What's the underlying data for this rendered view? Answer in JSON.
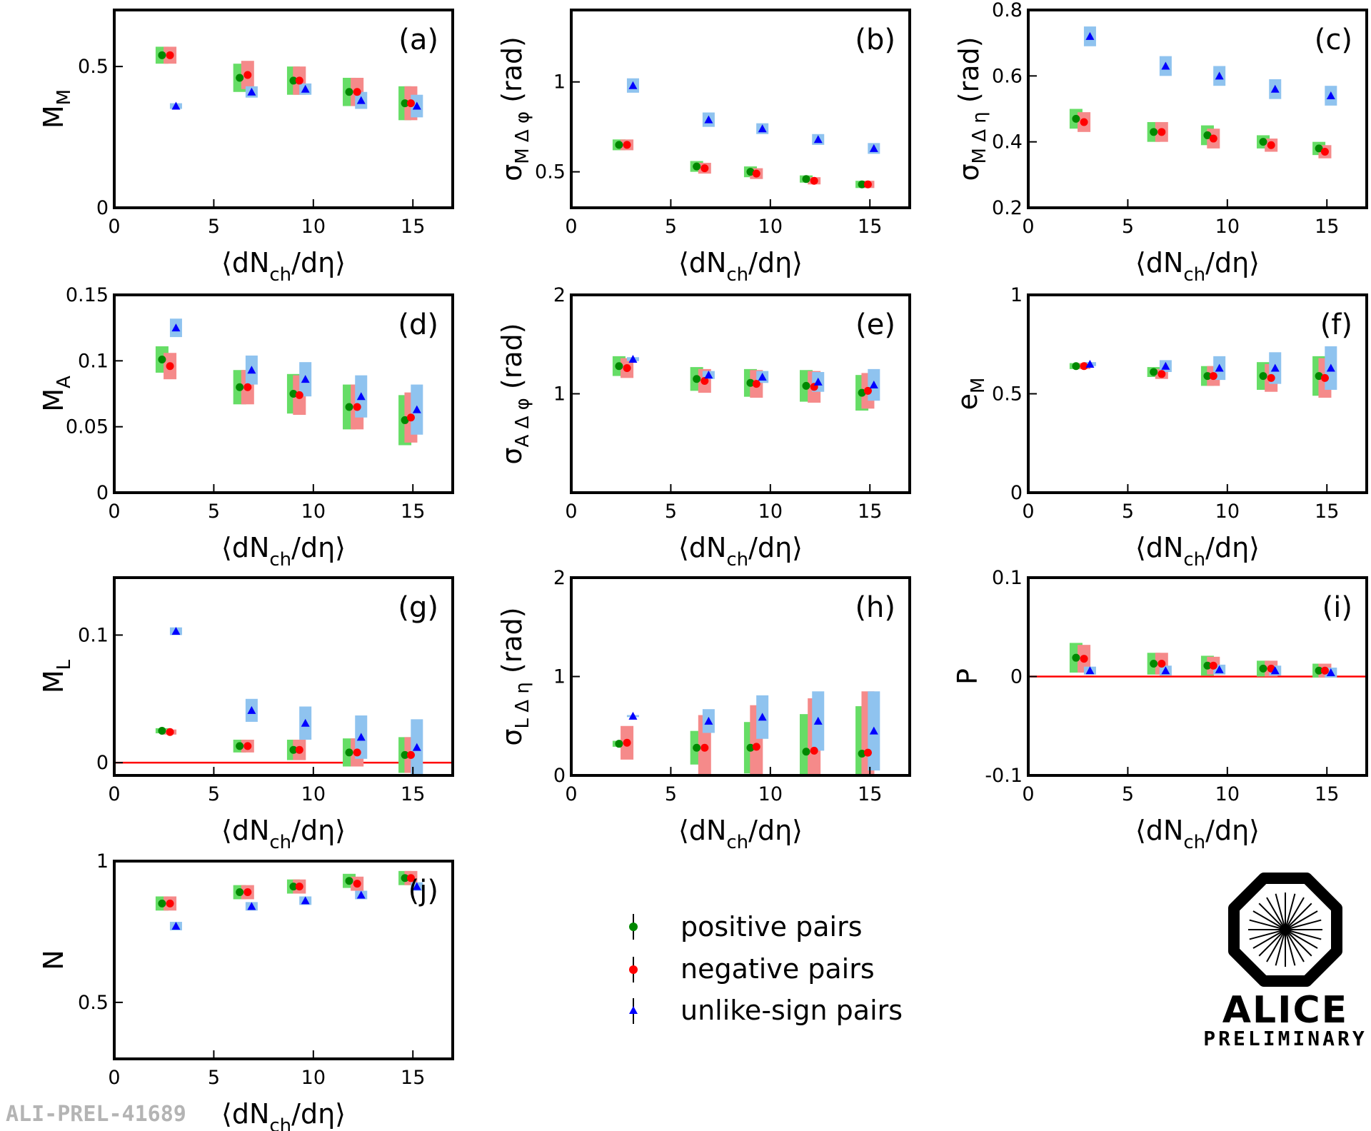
{
  "chart_data": [
    {
      "type": "scatter",
      "panel": "(a)",
      "ylabel_main": "M",
      "ylabel_sub": "M",
      "ylabel_suffix": "",
      "xlim": [
        0,
        17
      ],
      "ylim": [
        0,
        0.7
      ],
      "yticks": [
        0,
        0.5
      ],
      "ytick_labels": [
        "0",
        "0.5"
      ],
      "xticks": [
        0,
        5,
        10,
        15
      ],
      "xtick_labels": [
        "0",
        "5",
        "10",
        "15"
      ],
      "zero_line": false,
      "series": [
        {
          "name": "positive pairs",
          "x": [
            2.4,
            6.3,
            9.0,
            11.8,
            14.6
          ],
          "y": [
            0.54,
            0.46,
            0.45,
            0.41,
            0.37
          ],
          "sys": [
            0.03,
            0.05,
            0.05,
            0.05,
            0.06
          ]
        },
        {
          "name": "negative pairs",
          "x": [
            2.8,
            6.7,
            9.3,
            12.2,
            14.9
          ],
          "y": [
            0.54,
            0.47,
            0.45,
            0.41,
            0.37
          ],
          "sys": [
            0.03,
            0.05,
            0.05,
            0.05,
            0.06
          ]
        },
        {
          "name": "unlike-sign pairs",
          "x": [
            3.1,
            6.9,
            9.6,
            12.4,
            15.2
          ],
          "y": [
            0.36,
            0.41,
            0.42,
            0.38,
            0.36
          ],
          "sys": [
            0.01,
            0.02,
            0.02,
            0.03,
            0.04
          ]
        }
      ]
    },
    {
      "type": "scatter",
      "panel": "(b)",
      "ylabel_main": "σ",
      "ylabel_sub": "M Δ φ",
      "ylabel_suffix": " (rad)",
      "xlim": [
        0,
        17
      ],
      "ylim": [
        0.3,
        1.4
      ],
      "yticks": [
        0.5,
        1
      ],
      "ytick_labels": [
        "0.5",
        "1"
      ],
      "xticks": [
        0,
        5,
        10,
        15
      ],
      "xtick_labels": [
        "0",
        "5",
        "10",
        "15"
      ],
      "zero_line": false,
      "series": [
        {
          "name": "positive pairs",
          "x": [
            2.4,
            6.3,
            9.0,
            11.8,
            14.6
          ],
          "y": [
            0.65,
            0.53,
            0.5,
            0.46,
            0.43
          ],
          "sys": [
            0.03,
            0.03,
            0.03,
            0.02,
            0.02
          ]
        },
        {
          "name": "negative pairs",
          "x": [
            2.8,
            6.7,
            9.3,
            12.2,
            14.9
          ],
          "y": [
            0.65,
            0.52,
            0.49,
            0.45,
            0.43
          ],
          "sys": [
            0.03,
            0.03,
            0.03,
            0.02,
            0.02
          ]
        },
        {
          "name": "unlike-sign pairs",
          "x": [
            3.1,
            6.9,
            9.6,
            12.4,
            15.2
          ],
          "y": [
            0.98,
            0.79,
            0.74,
            0.68,
            0.63
          ],
          "sys": [
            0.04,
            0.04,
            0.03,
            0.03,
            0.03
          ]
        }
      ]
    },
    {
      "type": "scatter",
      "panel": "(c)",
      "ylabel_main": "σ",
      "ylabel_sub": "M Δ η",
      "ylabel_suffix": " (rad)",
      "xlim": [
        0,
        17
      ],
      "ylim": [
        0.2,
        0.8
      ],
      "yticks": [
        0.2,
        0.4,
        0.6,
        0.8
      ],
      "ytick_labels": [
        "0.2",
        "0.4",
        "0.6",
        "0.8"
      ],
      "xticks": [
        0,
        5,
        10,
        15
      ],
      "xtick_labels": [
        "0",
        "5",
        "10",
        "15"
      ],
      "zero_line": false,
      "series": [
        {
          "name": "positive pairs",
          "x": [
            2.4,
            6.3,
            9.0,
            11.8,
            14.6
          ],
          "y": [
            0.47,
            0.43,
            0.42,
            0.4,
            0.38
          ],
          "sys": [
            0.03,
            0.03,
            0.03,
            0.02,
            0.02
          ]
        },
        {
          "name": "negative pairs",
          "x": [
            2.8,
            6.7,
            9.3,
            12.2,
            14.9
          ],
          "y": [
            0.46,
            0.43,
            0.41,
            0.39,
            0.37
          ],
          "sys": [
            0.03,
            0.03,
            0.03,
            0.02,
            0.02
          ]
        },
        {
          "name": "unlike-sign pairs",
          "x": [
            3.1,
            6.9,
            9.6,
            12.4,
            15.2
          ],
          "y": [
            0.72,
            0.63,
            0.6,
            0.56,
            0.54
          ],
          "sys": [
            0.03,
            0.03,
            0.03,
            0.03,
            0.03
          ]
        }
      ]
    },
    {
      "type": "scatter",
      "panel": "(d)",
      "ylabel_main": "M",
      "ylabel_sub": "A",
      "ylabel_suffix": "",
      "xlim": [
        0,
        17
      ],
      "ylim": [
        0,
        0.15
      ],
      "yticks": [
        0,
        0.05,
        0.1,
        0.15
      ],
      "ytick_labels": [
        "0",
        "0.05",
        "0.1",
        "0.15"
      ],
      "xticks": [
        0,
        5,
        10,
        15
      ],
      "xtick_labels": [
        "0",
        "5",
        "10",
        "15"
      ],
      "zero_line": false,
      "series": [
        {
          "name": "positive pairs",
          "x": [
            2.4,
            6.3,
            9.0,
            11.8,
            14.6
          ],
          "y": [
            0.101,
            0.08,
            0.075,
            0.065,
            0.055
          ],
          "sys": [
            0.01,
            0.013,
            0.015,
            0.017,
            0.019
          ]
        },
        {
          "name": "negative pairs",
          "x": [
            2.8,
            6.7,
            9.3,
            12.2,
            14.9
          ],
          "y": [
            0.096,
            0.08,
            0.074,
            0.065,
            0.057
          ],
          "sys": [
            0.01,
            0.013,
            0.015,
            0.017,
            0.019
          ]
        },
        {
          "name": "unlike-sign pairs",
          "x": [
            3.1,
            6.9,
            9.6,
            12.4,
            15.2
          ],
          "y": [
            0.125,
            0.093,
            0.086,
            0.073,
            0.063
          ],
          "sys": [
            0.007,
            0.011,
            0.013,
            0.016,
            0.019
          ]
        }
      ]
    },
    {
      "type": "scatter",
      "panel": "(e)",
      "ylabel_main": "σ",
      "ylabel_sub": "A Δ φ",
      "ylabel_suffix": " (rad)",
      "xlim": [
        0,
        17
      ],
      "ylim": [
        0,
        2
      ],
      "yticks": [
        1,
        2
      ],
      "ytick_labels": [
        "1",
        "2"
      ],
      "xticks": [
        0,
        5,
        10,
        15
      ],
      "xtick_labels": [
        "0",
        "5",
        "10",
        "15"
      ],
      "zero_line": false,
      "series": [
        {
          "name": "positive pairs",
          "x": [
            2.4,
            6.3,
            9.0,
            11.8,
            14.6
          ],
          "y": [
            1.28,
            1.15,
            1.11,
            1.08,
            1.01
          ],
          "sys": [
            0.1,
            0.12,
            0.14,
            0.16,
            0.18
          ]
        },
        {
          "name": "negative pairs",
          "x": [
            2.8,
            6.7,
            9.3,
            12.2,
            14.9
          ],
          "y": [
            1.26,
            1.13,
            1.1,
            1.07,
            1.03
          ],
          "sys": [
            0.1,
            0.12,
            0.14,
            0.16,
            0.18
          ]
        },
        {
          "name": "unlike-sign pairs",
          "x": [
            3.1,
            6.9,
            9.6,
            12.4,
            15.2
          ],
          "y": [
            1.35,
            1.19,
            1.17,
            1.12,
            1.09
          ],
          "sys": [
            0.02,
            0.04,
            0.06,
            0.1,
            0.16
          ]
        }
      ]
    },
    {
      "type": "scatter",
      "panel": "(f)",
      "ylabel_main": "e",
      "ylabel_sub": "M",
      "ylabel_suffix": "",
      "xlim": [
        0,
        17
      ],
      "ylim": [
        0,
        1
      ],
      "yticks": [
        0,
        0.5,
        1
      ],
      "ytick_labels": [
        "0",
        "0.5",
        "1"
      ],
      "xticks": [
        0,
        5,
        10,
        15
      ],
      "xtick_labels": [
        "0",
        "5",
        "10",
        "15"
      ],
      "zero_line": false,
      "series": [
        {
          "name": "positive pairs",
          "x": [
            2.4,
            6.3,
            9.0,
            11.8,
            14.6
          ],
          "y": [
            0.64,
            0.61,
            0.59,
            0.59,
            0.59
          ],
          "sys": [
            0.015,
            0.025,
            0.05,
            0.07,
            0.1
          ]
        },
        {
          "name": "negative pairs",
          "x": [
            2.8,
            6.7,
            9.3,
            12.2,
            14.9
          ],
          "y": [
            0.64,
            0.6,
            0.59,
            0.58,
            0.58
          ],
          "sys": [
            0.015,
            0.025,
            0.05,
            0.07,
            0.1
          ]
        },
        {
          "name": "unlike-sign pairs",
          "x": [
            3.1,
            6.9,
            9.6,
            12.4,
            15.2
          ],
          "y": [
            0.65,
            0.64,
            0.63,
            0.63,
            0.63
          ],
          "sys": [
            0.01,
            0.03,
            0.06,
            0.08,
            0.11
          ]
        }
      ]
    },
    {
      "type": "scatter",
      "panel": "(g)",
      "ylabel_main": "M",
      "ylabel_sub": "L",
      "ylabel_suffix": "",
      "xlim": [
        0,
        17
      ],
      "ylim": [
        -0.01,
        0.145
      ],
      "yticks": [
        0,
        0.1
      ],
      "ytick_labels": [
        "0",
        "0.1"
      ],
      "xticks": [
        0,
        5,
        10,
        15
      ],
      "xtick_labels": [
        "0",
        "5",
        "10",
        "15"
      ],
      "zero_line": true,
      "series": [
        {
          "name": "positive pairs",
          "x": [
            2.4,
            6.3,
            9.0,
            11.8,
            14.6
          ],
          "y": [
            0.025,
            0.013,
            0.01,
            0.008,
            0.006
          ],
          "sys": [
            0.002,
            0.005,
            0.008,
            0.011,
            0.014
          ]
        },
        {
          "name": "negative pairs",
          "x": [
            2.8,
            6.7,
            9.3,
            12.2,
            14.9
          ],
          "y": [
            0.024,
            0.013,
            0.01,
            0.008,
            0.006
          ],
          "sys": [
            0.002,
            0.005,
            0.008,
            0.011,
            0.014
          ]
        },
        {
          "name": "unlike-sign pairs",
          "x": [
            3.1,
            6.9,
            9.6,
            12.4,
            15.2
          ],
          "y": [
            0.103,
            0.041,
            0.031,
            0.02,
            0.012
          ],
          "sys": [
            0.003,
            0.009,
            0.013,
            0.017,
            0.022
          ]
        }
      ]
    },
    {
      "type": "scatter",
      "panel": "(h)",
      "ylabel_main": "σ",
      "ylabel_sub": "L Δ η",
      "ylabel_suffix": " (rad)",
      "xlim": [
        0,
        17
      ],
      "ylim": [
        0,
        2
      ],
      "yticks": [
        0,
        1,
        2
      ],
      "ytick_labels": [
        "0",
        "1",
        "2"
      ],
      "xticks": [
        0,
        5,
        10,
        15
      ],
      "xtick_labels": [
        "0",
        "5",
        "10",
        "15"
      ],
      "zero_line": false,
      "series": [
        {
          "name": "positive pairs",
          "x": [
            2.4,
            6.3,
            9.0,
            11.8,
            14.6
          ],
          "y": [
            0.32,
            0.28,
            0.28,
            0.24,
            0.22
          ],
          "sys": [
            0.03,
            0.17,
            0.26,
            0.38,
            0.48
          ]
        },
        {
          "name": "negative pairs",
          "x": [
            2.8,
            6.7,
            9.3,
            12.2,
            14.9
          ],
          "y": [
            0.33,
            0.28,
            0.29,
            0.25,
            0.23
          ],
          "sys": [
            0.17,
            0.33,
            0.42,
            0.53,
            0.62
          ]
        },
        {
          "name": "unlike-sign pairs",
          "x": [
            3.1,
            6.9,
            9.6,
            12.4,
            15.2
          ],
          "y": [
            0.6,
            0.55,
            0.59,
            0.55,
            0.45
          ],
          "sys": [
            0.01,
            0.12,
            0.22,
            0.3,
            0.4
          ]
        }
      ]
    },
    {
      "type": "scatter",
      "panel": "(i)",
      "ylabel_main": "P",
      "ylabel_sub": "",
      "ylabel_suffix": "",
      "xlim": [
        0,
        17
      ],
      "ylim": [
        -0.1,
        0.1
      ],
      "yticks": [
        -0.1,
        0,
        0.1
      ],
      "ytick_labels": [
        "-0.1",
        "0",
        "0.1"
      ],
      "xticks": [
        0,
        5,
        10,
        15
      ],
      "xtick_labels": [
        "0",
        "5",
        "10",
        "15"
      ],
      "zero_line": true,
      "series": [
        {
          "name": "positive pairs",
          "x": [
            2.4,
            6.3,
            9.0,
            11.8,
            14.6
          ],
          "y": [
            0.019,
            0.013,
            0.011,
            0.008,
            0.006
          ],
          "sys": [
            0.015,
            0.011,
            0.01,
            0.008,
            0.007
          ]
        },
        {
          "name": "negative pairs",
          "x": [
            2.8,
            6.7,
            9.3,
            12.2,
            14.9
          ],
          "y": [
            0.018,
            0.013,
            0.011,
            0.008,
            0.006
          ],
          "sys": [
            0.014,
            0.011,
            0.009,
            0.008,
            0.007
          ]
        },
        {
          "name": "unlike-sign pairs",
          "x": [
            3.1,
            6.9,
            9.6,
            12.4,
            15.2
          ],
          "y": [
            0.006,
            0.006,
            0.007,
            0.006,
            0.004
          ],
          "sys": [
            0.004,
            0.005,
            0.005,
            0.005,
            0.005
          ]
        }
      ]
    },
    {
      "type": "scatter",
      "panel": "(j)",
      "ylabel_main": "N",
      "ylabel_sub": "",
      "ylabel_suffix": "",
      "xlim": [
        0,
        17
      ],
      "ylim": [
        0.3,
        1
      ],
      "yticks": [
        0.5,
        1
      ],
      "ytick_labels": [
        "0.5",
        "1"
      ],
      "xticks": [
        0,
        5,
        10,
        15
      ],
      "xtick_labels": [
        "0",
        "5",
        "10",
        "15"
      ],
      "zero_line": false,
      "series": [
        {
          "name": "positive pairs",
          "x": [
            2.4,
            6.3,
            9.0,
            11.8,
            14.6
          ],
          "y": [
            0.85,
            0.89,
            0.91,
            0.93,
            0.94
          ],
          "sys": [
            0.025,
            0.025,
            0.025,
            0.025,
            0.025
          ]
        },
        {
          "name": "negative pairs",
          "x": [
            2.8,
            6.7,
            9.3,
            12.2,
            14.9
          ],
          "y": [
            0.85,
            0.89,
            0.91,
            0.92,
            0.94
          ],
          "sys": [
            0.025,
            0.025,
            0.025,
            0.025,
            0.025
          ]
        },
        {
          "name": "unlike-sign pairs",
          "x": [
            3.1,
            6.9,
            9.6,
            12.4,
            15.2
          ],
          "y": [
            0.77,
            0.84,
            0.86,
            0.88,
            0.91
          ],
          "sys": [
            0.015,
            0.015,
            0.015,
            0.015,
            0.015
          ]
        }
      ]
    }
  ],
  "xlabel": "⟨dN",
  "xlabel_sub": "ch",
  "xlabel_end": "/dη⟩",
  "legend": {
    "items": [
      {
        "label": "positive pairs",
        "color": "#008800",
        "marker": "circle"
      },
      {
        "label": "negative pairs",
        "color": "#ff0000",
        "marker": "circle"
      },
      {
        "label": "unlike-sign pairs",
        "color": "#0000ff",
        "marker": "triangle"
      }
    ]
  },
  "colors": {
    "positive_marker": "#008800",
    "positive_band": "#66dd66",
    "negative_marker": "#ff0000",
    "negative_band": "#f58a8a",
    "unlike_marker": "#0000ff",
    "unlike_band": "#8fc3ef",
    "zero_line": "#ff0000"
  },
  "logo": {
    "name": "ALICE",
    "subtitle": "PRELIMINARY"
  },
  "footer_id": "ALI-PREL-41689"
}
